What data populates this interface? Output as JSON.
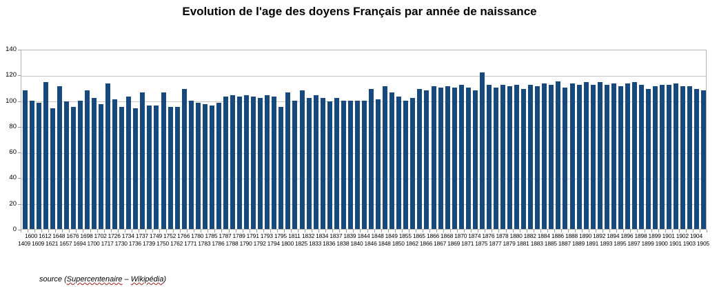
{
  "title": "Evolution de l'age des doyens Français par année de naissance",
  "source": {
    "prefix": "source (",
    "link1": "Supercentenaire",
    "separator": " – ",
    "link2": "Wikipédia",
    "suffix": ")"
  },
  "colors": {
    "bar": "#17497D",
    "grid": "#C8C8C8",
    "plot_border": "#B3B3B3",
    "background": "#FFFFFF",
    "text": "#000000"
  },
  "chart_data": {
    "type": "bar",
    "title": "Evolution de l'age des doyens Français par année de naissance",
    "xlabel": "",
    "ylabel": "",
    "ylim": [
      0,
      140
    ],
    "yticks": [
      0,
      20,
      40,
      60,
      80,
      100,
      120,
      140
    ],
    "grid": "horizontal",
    "legend_position": "none",
    "bar_color": "#17497D",
    "categories": [
      "1409",
      "1600",
      "1609",
      "1612",
      "1621",
      "1648",
      "1657",
      "1676",
      "1694",
      "1698",
      "1700",
      "1702",
      "1717",
      "1726",
      "1730",
      "1734",
      "1736",
      "1737",
      "1739",
      "1749",
      "1750",
      "1752",
      "1762",
      "1766",
      "1771",
      "1780",
      "1783",
      "1785",
      "1786",
      "1787",
      "1788",
      "1789",
      "1790",
      "1791",
      "1792",
      "1793",
      "1794",
      "1795",
      "1800",
      "1811",
      "1825",
      "1832",
      "1833",
      "1834",
      "1836",
      "1837",
      "1838",
      "1839",
      "1840",
      "1844",
      "1846",
      "1848",
      "1848",
      "1849",
      "1850",
      "1855",
      "1862",
      "1865",
      "1866",
      "1866",
      "1867",
      "1868",
      "1869",
      "1870",
      "1871",
      "1874",
      "1875",
      "1876",
      "1877",
      "1878",
      "1879",
      "1880",
      "1881",
      "1882",
      "1883",
      "1884",
      "1885",
      "1886",
      "1887",
      "1888",
      "1889",
      "1890",
      "1891",
      "1892",
      "1893",
      "1894",
      "1895",
      "1896",
      "1897",
      "1898",
      "1899",
      "1899",
      "1900",
      "1901",
      "1901",
      "1902",
      "1903",
      "1904",
      "1905"
    ],
    "values": [
      108,
      100,
      98,
      114,
      94,
      111,
      99,
      95,
      100,
      108,
      102,
      97,
      113,
      101,
      95,
      103,
      94,
      106,
      96,
      96,
      106,
      95,
      95,
      109,
      100,
      98,
      97,
      96,
      98,
      103,
      104,
      103,
      104,
      103,
      102,
      104,
      103,
      95,
      106,
      100,
      108,
      102,
      104,
      102,
      99,
      102,
      100,
      100,
      100,
      100,
      109,
      101,
      111,
      106,
      103,
      100,
      102,
      109,
      108,
      111,
      110,
      111,
      110,
      112,
      110,
      108,
      122,
      112,
      110,
      112,
      111,
      112,
      109,
      112,
      111,
      113,
      112,
      115,
      110,
      113,
      112,
      114,
      112,
      114,
      112,
      113,
      111,
      113,
      114,
      112,
      109,
      111,
      112,
      112,
      113,
      111,
      111,
      109,
      108
    ]
  }
}
